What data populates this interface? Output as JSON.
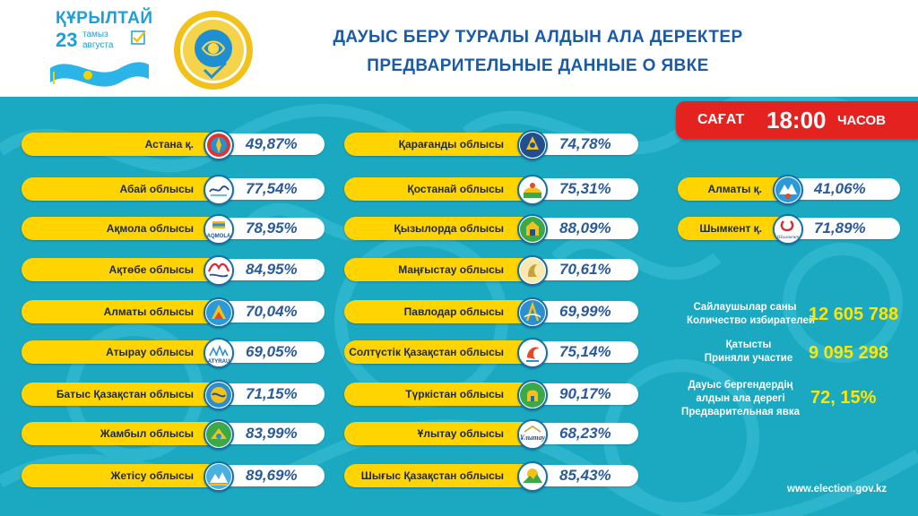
{
  "header": {
    "brand_word": "ҚҰРЫЛТАЙ",
    "brand_day": "23",
    "brand_month_kk": "тамыз",
    "brand_month_ru": "августа",
    "title_kk": "ДАУЫС БЕРУ ТУРАЛЫ АЛДЫН АЛА ДЕРЕКТЕР",
    "title_ru": "ПРЕДВАРИТЕЛЬНЫЕ ДАННЫЕ О ЯВКЕ"
  },
  "time": {
    "label_kk": "САҒАТ",
    "value": "18:00",
    "label_ru": "ЧАСОВ"
  },
  "regions": [
    {
      "name": "Астана  қ.",
      "pct": "49,87%"
    },
    {
      "name": "Абай облысы",
      "pct": "77,54%"
    },
    {
      "name": "Ақмола облысы",
      "pct": "78,95%"
    },
    {
      "name": "Ақтөбе облысы",
      "pct": "84,95%"
    },
    {
      "name": "Алматы облысы",
      "pct": "70,04%"
    },
    {
      "name": "Атырау  облысы",
      "pct": "69,05%"
    },
    {
      "name": "Батыс Қазақстан облысы",
      "pct": "71,15%"
    },
    {
      "name": "Жамбыл облысы",
      "pct": "83,99%"
    },
    {
      "name": "Жетісу облысы",
      "pct": "89,69%"
    },
    {
      "name": "Қарағанды облысы",
      "pct": "74,78%"
    },
    {
      "name": "Қостанай облысы",
      "pct": "75,31%"
    },
    {
      "name": "Қызылорда облысы",
      "pct": "88,09%"
    },
    {
      "name": "Маңғыстау облысы",
      "pct": "70,61%"
    },
    {
      "name": "Павлодар облысы",
      "pct": "69,99%"
    },
    {
      "name": "Солтүстік Қазақстан облысы",
      "pct": "75,14%"
    },
    {
      "name": "Түркістан облысы",
      "pct": "90,17%"
    },
    {
      "name": "Ұлытау облысы",
      "pct": "68,23%"
    },
    {
      "name": "Шығыс Қазақстан облысы",
      "pct": "85,43%"
    },
    {
      "name": "Алматы қ.",
      "pct": "41,06%"
    },
    {
      "name": "Шымкент қ.",
      "pct": "71,89%"
    }
  ],
  "emblem_labels": {
    "akmola": "AQMOLA",
    "atyrau": "ATYRAU",
    "ulytau": "Ұлытау",
    "shymkent": "Шымкент"
  },
  "stats": {
    "voters_label_kk": "Сайлаушылар саны",
    "voters_label_ru": "Количество избирателей",
    "voters_value": "12 605 788",
    "turnout_label_kk": "Қатысты",
    "turnout_label_ru": "Приняли участие",
    "turnout_value": "9 095 298",
    "prelim_label_1": "Дауыс бергендердің",
    "prelim_label_2": "алдын ала дерегі",
    "prelim_label_3": "Предварительная явка",
    "prelim_value": "72, 15%"
  },
  "footer": {
    "website": "www.election.gov.kz"
  },
  "colors": {
    "panel": "#1ba9c2",
    "pill": "#ffd400",
    "badge": "#e42320",
    "title": "#1a5aa6",
    "value": "#ffe600"
  }
}
